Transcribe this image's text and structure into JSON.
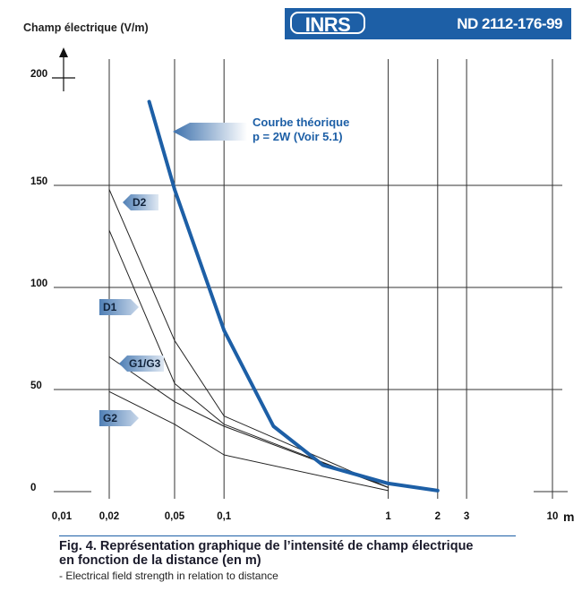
{
  "header": {
    "logo": "INRS",
    "doc_ref": "ND 2112-176-99",
    "colors": {
      "badge": "#1d5fa6",
      "logo_text": "#ffffff"
    }
  },
  "caption": {
    "title_line1": "Fig. 4. Représentation graphique de l’intensité de champ électrique",
    "title_line2": "en fonction de la distance (en m)",
    "subtitle": "- Electrical field strength in relation to distance"
  },
  "chart_data": {
    "type": "line",
    "ylabel": "Champ électrique (V/m)",
    "xlabel": "m",
    "x_scale": "log",
    "xlim": [
      0.01,
      10
    ],
    "ylim": [
      0,
      200
    ],
    "x_ticks": [
      {
        "value": 0.01,
        "label": "0,01"
      },
      {
        "value": 0.02,
        "label": "0,02"
      },
      {
        "value": 0.05,
        "label": "0,05"
      },
      {
        "value": 0.1,
        "label": "0,1"
      },
      {
        "value": 1,
        "label": "1"
      },
      {
        "value": 2,
        "label": "2"
      },
      {
        "value": 3,
        "label": "3"
      },
      {
        "value": 10,
        "label": "10"
      }
    ],
    "y_ticks": [
      0,
      50,
      100,
      150,
      200
    ],
    "grid": true,
    "series": [
      {
        "name": "Courbe théorique p = 2W (Voir 5.1)",
        "color": "#1d5fa6",
        "width": 4,
        "x": [
          0.035,
          0.05,
          0.1,
          0.2,
          0.4,
          1,
          2
        ],
        "y": [
          191,
          148,
          79,
          32,
          13,
          4,
          0.5
        ]
      },
      {
        "name": "D2",
        "color": "#222222",
        "width": 1,
        "x": [
          0.02,
          0.05,
          0.1,
          1
        ],
        "y": [
          148,
          74,
          37,
          2
        ]
      },
      {
        "name": "D1",
        "color": "#222222",
        "width": 1,
        "x": [
          0.02,
          0.05,
          0.1,
          1
        ],
        "y": [
          128,
          53,
          33,
          2
        ]
      },
      {
        "name": "G1/G3",
        "color": "#222222",
        "width": 1,
        "x": [
          0.02,
          0.05,
          0.1,
          1
        ],
        "y": [
          66,
          44,
          32,
          2
        ]
      },
      {
        "name": "G2",
        "color": "#222222",
        "width": 1,
        "x": [
          0.02,
          0.05,
          0.1,
          1
        ],
        "y": [
          49,
          33,
          18,
          0.5
        ]
      }
    ],
    "annotations": [
      {
        "text_line1": "Courbe théorique",
        "text_line2": "p = 2W (Voir 5.1)",
        "color": "#1d5fa6"
      }
    ],
    "series_tags": [
      {
        "label": "D2",
        "direction": "left"
      },
      {
        "label": "D1",
        "direction": "right"
      },
      {
        "label": "G1/G3",
        "direction": "left"
      },
      {
        "label": "G2",
        "direction": "right"
      }
    ]
  }
}
